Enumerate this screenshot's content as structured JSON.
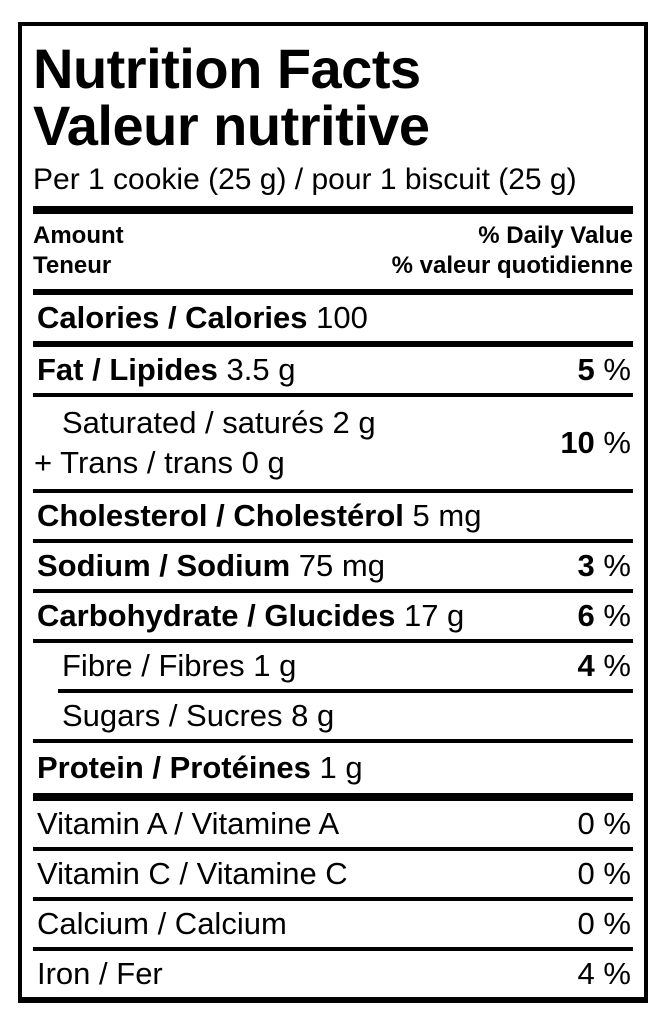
{
  "percent_sign": "%",
  "colors": {
    "ink": "#000000",
    "background": "#ffffff"
  },
  "title": {
    "line1": "Nutrition Facts",
    "line2": "Valeur nutritive"
  },
  "serving": "Per 1 cookie (25 g) / pour 1 biscuit (25 g)",
  "header": {
    "amount_line1": "Amount",
    "amount_line2": "Teneur",
    "dv_line1": "% Daily Value",
    "dv_line2": "% valeur quotidienne"
  },
  "calories": {
    "label": "Calories / Calories",
    "value": "100"
  },
  "nutrients": {
    "fat": {
      "label": "Fat / Lipides",
      "amount": "3.5 g",
      "dv": "5"
    },
    "saturated": {
      "line1": "Saturated / saturés 2 g",
      "line2": "+ Trans / trans 0 g",
      "dv": "10"
    },
    "cholesterol": {
      "label": "Cholesterol / Cholestérol",
      "amount": "5 mg"
    },
    "sodium": {
      "label": "Sodium / Sodium",
      "amount": "75 mg",
      "dv": "3"
    },
    "carbohydrate": {
      "label": "Carbohydrate / Glucides",
      "amount": "17 g",
      "dv": "6"
    },
    "fibre": {
      "label": "Fibre / Fibres",
      "amount": "1 g",
      "dv": "4"
    },
    "sugars": {
      "label": "Sugars / Sucres",
      "amount": "8 g"
    },
    "protein": {
      "label": "Protein / Protéines",
      "amount": "1 g"
    }
  },
  "micronutrients": [
    {
      "label": "Vitamin A / Vitamine A",
      "dv": "0"
    },
    {
      "label": "Vitamin C / Vitamine C",
      "dv": "0"
    },
    {
      "label": "Calcium / Calcium",
      "dv": "0"
    },
    {
      "label": "Iron / Fer",
      "dv": "4"
    }
  ]
}
